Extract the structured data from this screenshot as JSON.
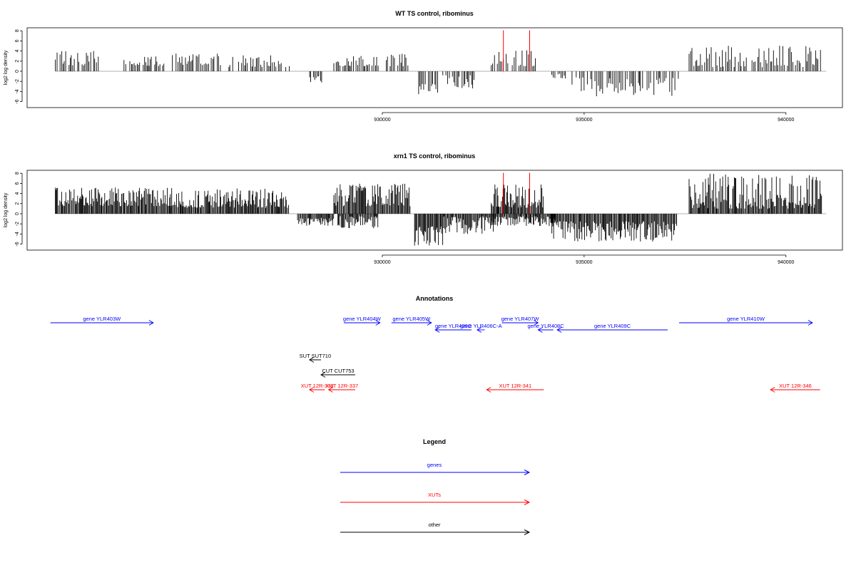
{
  "chart_data": [
    {
      "type": "bar",
      "title": "WT TS control, ribominus",
      "ylabel": "log2 log density",
      "xlabel": "",
      "xlim": [
        921200,
        941400
      ],
      "ylim": [
        -6.2,
        8.2
      ],
      "yticks": [
        -6,
        -4,
        -2,
        0,
        2,
        4,
        6,
        8
      ],
      "xticks": [
        930000,
        935000,
        940000
      ],
      "markers": [
        933000,
        933650
      ],
      "segments": [
        {
          "x0": 921900,
          "x1": 923000,
          "seed": 3,
          "lo": 1.0,
          "hi": 4.4,
          "sign": 1
        },
        {
          "x0": 923600,
          "x1": 924600,
          "seed": 5,
          "lo": 1.0,
          "hi": 3.0,
          "sign": 1
        },
        {
          "x0": 924800,
          "x1": 926000,
          "seed": 7,
          "lo": 1.2,
          "hi": 3.5,
          "sign": 1
        },
        {
          "x0": 926200,
          "x1": 927700,
          "seed": 9,
          "lo": 0.8,
          "hi": 3.2,
          "sign": 1
        },
        {
          "x0": 928200,
          "x1": 928500,
          "seed": 11,
          "lo": 1.0,
          "hi": 2.5,
          "sign": -1
        },
        {
          "x0": 928800,
          "x1": 929900,
          "seed": 13,
          "lo": 1.0,
          "hi": 3.0,
          "sign": 1
        },
        {
          "x0": 930100,
          "x1": 930700,
          "seed": 15,
          "lo": 1.0,
          "hi": 3.5,
          "sign": 1
        },
        {
          "x0": 930900,
          "x1": 931400,
          "seed": 17,
          "lo": 2.5,
          "hi": 5.3,
          "sign": -1
        },
        {
          "x0": 931500,
          "x1": 932300,
          "seed": 19,
          "lo": 0.8,
          "hi": 3.5,
          "sign": -1
        },
        {
          "x0": 932700,
          "x1": 933800,
          "seed": 21,
          "lo": 1.0,
          "hi": 4.2,
          "sign": 1
        },
        {
          "x0": 934200,
          "x1": 934600,
          "seed": 23,
          "lo": 0.5,
          "hi": 1.5,
          "sign": -1
        },
        {
          "x0": 934700,
          "x1": 937400,
          "seed": 25,
          "lo": 1.2,
          "hi": 5.0,
          "sign": -1
        },
        {
          "x0": 937600,
          "x1": 940900,
          "seed": 27,
          "lo": 0.8,
          "hi": 5.2,
          "sign": 1
        }
      ]
    },
    {
      "type": "bar",
      "title": "xrn1 TS control, ribominus",
      "ylabel": "log2 log density",
      "xlabel": "",
      "xlim": [
        921200,
        941400
      ],
      "ylim": [
        -6.2,
        8.2
      ],
      "yticks": [
        -6,
        -4,
        -2,
        0,
        2,
        4,
        6,
        8
      ],
      "xticks": [
        930000,
        935000,
        940000
      ],
      "markers": [
        933000,
        933650
      ],
      "segments": [
        {
          "x0": 921900,
          "x1": 924800,
          "seed": 31,
          "lo": 1.5,
          "hi": 5.3,
          "sign": 1
        },
        {
          "x0": 924800,
          "x1": 927700,
          "seed": 33,
          "lo": 1.2,
          "hi": 5.0,
          "sign": 1
        },
        {
          "x0": 927900,
          "x1": 928800,
          "seed": 35,
          "lo": 0.8,
          "hi": 2.5,
          "sign": -1
        },
        {
          "x0": 928800,
          "x1": 930700,
          "seed": 37,
          "lo": 1.5,
          "hi": 6.0,
          "sign": 1
        },
        {
          "x0": 928900,
          "x1": 929900,
          "seed": 39,
          "lo": 0.5,
          "hi": 3.0,
          "sign": -1
        },
        {
          "x0": 930800,
          "x1": 931500,
          "seed": 41,
          "lo": 2.5,
          "hi": 6.3,
          "sign": -1
        },
        {
          "x0": 931500,
          "x1": 932800,
          "seed": 43,
          "lo": 0.5,
          "hi": 4.0,
          "sign": -1
        },
        {
          "x0": 932700,
          "x1": 934000,
          "seed": 45,
          "lo": 1.2,
          "hi": 5.8,
          "sign": 1
        },
        {
          "x0": 932700,
          "x1": 934300,
          "seed": 47,
          "lo": 0.5,
          "hi": 2.5,
          "sign": -1
        },
        {
          "x0": 934200,
          "x1": 937300,
          "seed": 49,
          "lo": 1.5,
          "hi": 5.5,
          "sign": -1
        },
        {
          "x0": 937600,
          "x1": 940900,
          "seed": 51,
          "lo": 1.0,
          "hi": 7.9,
          "sign": 1
        }
      ]
    }
  ],
  "annotations": {
    "title": "Annotations",
    "items": [
      {
        "label": "gene YLR403W",
        "start": 921000,
        "end": 923700,
        "row": 0,
        "strand": "+",
        "color": "#0000ff"
      },
      {
        "label": "gene YLR404W",
        "start": 928700,
        "end": 929650,
        "row": 0,
        "strand": "+",
        "color": "#0000ff"
      },
      {
        "label": "gene YLR405W",
        "start": 929950,
        "end": 931000,
        "row": 0,
        "strand": "+",
        "color": "#0000ff"
      },
      {
        "label": "gene YLR406C",
        "start": 931100,
        "end": 932050,
        "row": 1,
        "strand": "-",
        "color": "#0000ff"
      },
      {
        "label": "gene YLR406C-A",
        "start": 932200,
        "end": 932400,
        "row": 1,
        "strand": "-",
        "color": "#0000ff"
      },
      {
        "label": "gene YLR407W",
        "start": 932850,
        "end": 933800,
        "row": 0,
        "strand": "+",
        "color": "#0000ff"
      },
      {
        "label": "gene YLR408C",
        "start": 933800,
        "end": 934200,
        "row": 1,
        "strand": "-",
        "color": "#0000ff"
      },
      {
        "label": "gene YLR409C",
        "start": 934300,
        "end": 937200,
        "row": 1,
        "strand": "-",
        "color": "#0000ff"
      },
      {
        "label": "gene YLR410W",
        "start": 937500,
        "end": 941000,
        "row": 0,
        "strand": "+",
        "color": "#0000ff"
      },
      {
        "label": "SUT SUT710",
        "start": 927800,
        "end": 928100,
        "row": 3,
        "strand": "-",
        "color": "#000000"
      },
      {
        "label": "CUT CUT753",
        "start": 928100,
        "end": 929000,
        "row": 4,
        "strand": "-",
        "color": "#000000"
      },
      {
        "label": "XUT 12R-336",
        "start": 927800,
        "end": 928200,
        "row": 5,
        "strand": "-",
        "color": "#ff0000"
      },
      {
        "label": "XUT 12R-337",
        "start": 928300,
        "end": 929000,
        "row": 5,
        "strand": "-",
        "color": "#ff0000"
      },
      {
        "label": "XUT 12R-341",
        "start": 932450,
        "end": 933950,
        "row": 5,
        "strand": "-",
        "color": "#ff0000"
      },
      {
        "label": "XUT 12R-346",
        "start": 939900,
        "end": 941200,
        "row": 5,
        "strand": "-",
        "color": "#ff0000"
      }
    ]
  },
  "legend": {
    "title": "Legend",
    "items": [
      {
        "label": "genes",
        "color": "#0000ff"
      },
      {
        "label": "XUTs",
        "color": "#ff0000"
      },
      {
        "label": "other",
        "color": "#000000"
      }
    ]
  }
}
